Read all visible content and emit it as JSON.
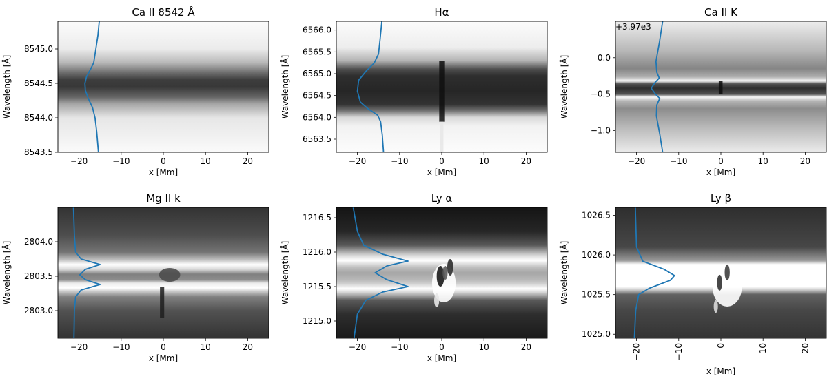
{
  "chart_data": [
    {
      "type": "heatmap",
      "title": "Ca II 8542 Å",
      "xlabel": "x [Mm]",
      "ylabel": "Wavelength [Å]",
      "offset_text": "",
      "xlim": [
        -25,
        25
      ],
      "ylim": [
        8543.5,
        8545.4
      ],
      "xticks": [
        -20,
        -10,
        0,
        10,
        20
      ],
      "xtick_labels": [
        "−20",
        "−10",
        "0",
        "10",
        "20"
      ],
      "yticks": [
        8543.5,
        8544.0,
        8544.5,
        8545.0
      ],
      "ytick_labels": [
        "8543.5",
        "8544.0",
        "8544.5",
        "8545.0"
      ],
      "image_bands": [
        {
          "y": 8543.5,
          "v": 0.98
        },
        {
          "y": 8544.0,
          "v": 0.9
        },
        {
          "y": 8544.2,
          "v": 0.65
        },
        {
          "y": 8544.3,
          "v": 0.4
        },
        {
          "y": 8544.45,
          "v": 0.22
        },
        {
          "y": 8544.55,
          "v": 0.24
        },
        {
          "y": 8544.65,
          "v": 0.42
        },
        {
          "y": 8544.8,
          "v": 0.72
        },
        {
          "y": 8545.0,
          "v": 0.92
        },
        {
          "y": 8545.4,
          "v": 0.99
        }
      ],
      "features": [],
      "profile": {
        "color": "#1f77b4",
        "points": [
          {
            "x": -15.4,
            "y": 8543.5
          },
          {
            "x": -15.8,
            "y": 8543.8
          },
          {
            "x": -16.2,
            "y": 8544.0
          },
          {
            "x": -16.8,
            "y": 8544.15
          },
          {
            "x": -17.8,
            "y": 8544.28
          },
          {
            "x": -18.5,
            "y": 8544.4
          },
          {
            "x": -18.6,
            "y": 8544.5
          },
          {
            "x": -18.2,
            "y": 8544.6
          },
          {
            "x": -17.3,
            "y": 8544.7
          },
          {
            "x": -16.5,
            "y": 8544.8
          },
          {
            "x": -16.0,
            "y": 8545.0
          },
          {
            "x": -15.5,
            "y": 8545.2
          },
          {
            "x": -15.2,
            "y": 8545.4
          }
        ]
      }
    },
    {
      "type": "heatmap",
      "title": "Hα",
      "xlabel": "x [Mm]",
      "ylabel": "Wavelength [Å]",
      "offset_text": "",
      "xlim": [
        -25,
        25
      ],
      "ylim": [
        6563.2,
        6566.2
      ],
      "xticks": [
        -20,
        -10,
        0,
        10,
        20
      ],
      "xtick_labels": [
        "−20",
        "−10",
        "0",
        "10",
        "20"
      ],
      "yticks": [
        6563.5,
        6564.0,
        6564.5,
        6565.0,
        6565.5,
        6566.0
      ],
      "ytick_labels": [
        "6563.5",
        "6564.0",
        "6564.5",
        "6565.0",
        "6565.5",
        "6566.0"
      ],
      "image_bands": [
        {
          "y": 6563.2,
          "v": 0.99
        },
        {
          "y": 6563.8,
          "v": 0.95
        },
        {
          "y": 6564.0,
          "v": 0.85
        },
        {
          "y": 6564.15,
          "v": 0.45
        },
        {
          "y": 6564.3,
          "v": 0.2
        },
        {
          "y": 6564.6,
          "v": 0.15
        },
        {
          "y": 6564.95,
          "v": 0.18
        },
        {
          "y": 6565.1,
          "v": 0.3
        },
        {
          "y": 6565.3,
          "v": 0.7
        },
        {
          "y": 6565.6,
          "v": 0.93
        },
        {
          "y": 6566.2,
          "v": 0.99
        }
      ],
      "features": [
        {
          "x0": -0.6,
          "x1": 0.6,
          "y0": 6563.9,
          "y1": 6565.3,
          "v": 0.06
        },
        {
          "x0": -0.4,
          "x1": 0.4,
          "y0": 6563.2,
          "y1": 6563.9,
          "v": 0.9
        }
      ],
      "profile": {
        "color": "#1f77b4",
        "points": [
          {
            "x": -13.8,
            "y": 6563.2
          },
          {
            "x": -14.1,
            "y": 6563.6
          },
          {
            "x": -14.5,
            "y": 6563.9
          },
          {
            "x": -15.2,
            "y": 6564.05
          },
          {
            "x": -17.5,
            "y": 6564.2
          },
          {
            "x": -19.3,
            "y": 6564.35
          },
          {
            "x": -20.0,
            "y": 6564.6
          },
          {
            "x": -19.7,
            "y": 6564.85
          },
          {
            "x": -18.0,
            "y": 6565.05
          },
          {
            "x": -16.0,
            "y": 6565.25
          },
          {
            "x": -15.0,
            "y": 6565.45
          },
          {
            "x": -14.6,
            "y": 6565.8
          },
          {
            "x": -14.2,
            "y": 6566.2
          }
        ]
      }
    },
    {
      "type": "heatmap",
      "title": "Ca II K",
      "xlabel": "x [Mm]",
      "ylabel": "Wavelength [Å]",
      "offset_text": "+3.97e3",
      "xlim": [
        -25,
        25
      ],
      "ylim": [
        -1.3,
        0.5
      ],
      "xticks": [
        -20,
        -10,
        0,
        10,
        20
      ],
      "xtick_labels": [
        "−20",
        "−10",
        "0",
        "10",
        "20"
      ],
      "yticks": [
        -1.0,
        -0.5,
        0.0
      ],
      "ytick_labels": [
        "−1.0",
        "−0.5",
        "0.0"
      ],
      "image_bands": [
        {
          "y": -1.3,
          "v": 0.92
        },
        {
          "y": -0.95,
          "v": 0.72
        },
        {
          "y": -0.7,
          "v": 0.55
        },
        {
          "y": -0.6,
          "v": 0.7
        },
        {
          "y": -0.54,
          "v": 0.97
        },
        {
          "y": -0.5,
          "v": 0.32
        },
        {
          "y": -0.42,
          "v": 0.18
        },
        {
          "y": -0.36,
          "v": 0.32
        },
        {
          "y": -0.32,
          "v": 0.97
        },
        {
          "y": -0.26,
          "v": 0.68
        },
        {
          "y": -0.15,
          "v": 0.52
        },
        {
          "y": 0.1,
          "v": 0.72
        },
        {
          "y": 0.5,
          "v": 0.93
        }
      ],
      "features": [
        {
          "x0": -0.5,
          "x1": 0.4,
          "y0": -0.5,
          "y1": -0.32,
          "v": 0.05
        }
      ],
      "profile": {
        "color": "#1f77b4",
        "points": [
          {
            "x": -13.8,
            "y": -1.3
          },
          {
            "x": -14.5,
            "y": -1.05
          },
          {
            "x": -15.3,
            "y": -0.8
          },
          {
            "x": -15.2,
            "y": -0.65
          },
          {
            "x": -14.5,
            "y": -0.56
          },
          {
            "x": -15.5,
            "y": -0.5
          },
          {
            "x": -16.5,
            "y": -0.42
          },
          {
            "x": -15.6,
            "y": -0.34
          },
          {
            "x": -14.6,
            "y": -0.28
          },
          {
            "x": -15.2,
            "y": -0.2
          },
          {
            "x": -15.4,
            "y": -0.05
          },
          {
            "x": -14.6,
            "y": 0.2
          },
          {
            "x": -13.8,
            "y": 0.5
          }
        ]
      }
    },
    {
      "type": "heatmap",
      "title": "Mg II k",
      "xlabel": "x [Mm]",
      "ylabel": "Wavelength [Å]",
      "offset_text": "",
      "xlim": [
        -25,
        25
      ],
      "ylim": [
        2802.6,
        2804.5
      ],
      "xticks": [
        -20,
        -10,
        0,
        10,
        20
      ],
      "xtick_labels": [
        "−20",
        "−10",
        "0",
        "10",
        "20"
      ],
      "yticks": [
        2803.0,
        2803.5,
        2804.0
      ],
      "ytick_labels": [
        "2803.0",
        "2803.5",
        "2804.0"
      ],
      "image_bands": [
        {
          "y": 2802.6,
          "v": 0.2
        },
        {
          "y": 2803.0,
          "v": 0.32
        },
        {
          "y": 2803.2,
          "v": 0.5
        },
        {
          "y": 2803.28,
          "v": 0.8
        },
        {
          "y": 2803.33,
          "v": 1.0
        },
        {
          "y": 2803.4,
          "v": 0.92
        },
        {
          "y": 2803.45,
          "v": 0.55
        },
        {
          "y": 2803.53,
          "v": 0.5
        },
        {
          "y": 2803.6,
          "v": 0.85
        },
        {
          "y": 2803.67,
          "v": 1.0
        },
        {
          "y": 2803.74,
          "v": 0.75
        },
        {
          "y": 2803.85,
          "v": 0.45
        },
        {
          "y": 2804.1,
          "v": 0.3
        },
        {
          "y": 2804.5,
          "v": 0.2
        }
      ],
      "features": [
        {
          "cx": 1.5,
          "cy": 2803.52,
          "rx": 2.5,
          "ry": 0.1,
          "v": 0.3
        },
        {
          "x0": -0.8,
          "x1": 0.2,
          "y0": 2802.9,
          "y1": 2803.35,
          "v": 0.12
        }
      ],
      "profile": {
        "color": "#1f77b4",
        "points": [
          {
            "x": -21.2,
            "y": 2802.6
          },
          {
            "x": -21.1,
            "y": 2803.0
          },
          {
            "x": -20.8,
            "y": 2803.2
          },
          {
            "x": -19.5,
            "y": 2803.3
          },
          {
            "x": -15.0,
            "y": 2803.38
          },
          {
            "x": -18.5,
            "y": 2803.45
          },
          {
            "x": -19.8,
            "y": 2803.52
          },
          {
            "x": -18.5,
            "y": 2803.6
          },
          {
            "x": -15.0,
            "y": 2803.67
          },
          {
            "x": -19.5,
            "y": 2803.75
          },
          {
            "x": -20.8,
            "y": 2803.85
          },
          {
            "x": -21.1,
            "y": 2804.1
          },
          {
            "x": -21.3,
            "y": 2804.5
          }
        ]
      }
    },
    {
      "type": "heatmap",
      "title": "Ly α",
      "xlabel": "x [Mm]",
      "ylabel": "Wavelength [Å]",
      "offset_text": "",
      "xlim": [
        -25,
        25
      ],
      "ylim": [
        1214.75,
        1216.65
      ],
      "xticks": [
        -20,
        -10,
        0,
        10,
        20
      ],
      "xtick_labels": [
        "−20",
        "−10",
        "0",
        "10",
        "20"
      ],
      "yticks": [
        1215.0,
        1215.5,
        1216.0,
        1216.5
      ],
      "ytick_labels": [
        "1215.0",
        "1215.5",
        "1216.0",
        "1216.5"
      ],
      "image_bands": [
        {
          "y": 1214.75,
          "v": 0.1
        },
        {
          "y": 1215.1,
          "v": 0.18
        },
        {
          "y": 1215.3,
          "v": 0.35
        },
        {
          "y": 1215.42,
          "v": 0.85
        },
        {
          "y": 1215.47,
          "v": 1.0
        },
        {
          "y": 1215.55,
          "v": 0.8
        },
        {
          "y": 1215.6,
          "v": 0.72
        },
        {
          "y": 1215.7,
          "v": 0.65
        },
        {
          "y": 1215.78,
          "v": 0.75
        },
        {
          "y": 1215.88,
          "v": 1.0
        },
        {
          "y": 1215.95,
          "v": 0.85
        },
        {
          "y": 1216.1,
          "v": 0.35
        },
        {
          "y": 1216.3,
          "v": 0.15
        },
        {
          "y": 1216.65,
          "v": 0.08
        }
      ],
      "features": [
        {
          "cx": 0.5,
          "cy": 1215.55,
          "rx": 2.8,
          "ry": 0.28,
          "v": 1.0
        },
        {
          "cx": -0.3,
          "cy": 1215.65,
          "rx": 0.9,
          "ry": 0.15,
          "v": 0.1
        },
        {
          "cx": 2.0,
          "cy": 1215.78,
          "rx": 0.7,
          "ry": 0.12,
          "v": 0.18
        },
        {
          "cx": 0.8,
          "cy": 1215.7,
          "rx": 0.6,
          "ry": 0.1,
          "v": 0.35
        },
        {
          "cx": -1.2,
          "cy": 1215.3,
          "rx": 0.6,
          "ry": 0.1,
          "v": 0.9
        }
      ],
      "profile": {
        "color": "#1f77b4",
        "points": [
          {
            "x": -20.8,
            "y": 1214.75
          },
          {
            "x": -20.0,
            "y": 1215.1
          },
          {
            "x": -18.0,
            "y": 1215.3
          },
          {
            "x": -14.0,
            "y": 1215.42
          },
          {
            "x": -8.0,
            "y": 1215.5
          },
          {
            "x": -13.0,
            "y": 1215.6
          },
          {
            "x": -15.8,
            "y": 1215.7
          },
          {
            "x": -13.0,
            "y": 1215.8
          },
          {
            "x": -8.0,
            "y": 1215.87
          },
          {
            "x": -14.0,
            "y": 1215.97
          },
          {
            "x": -18.5,
            "y": 1216.1
          },
          {
            "x": -20.0,
            "y": 1216.3
          },
          {
            "x": -21.0,
            "y": 1216.65
          }
        ]
      }
    },
    {
      "type": "heatmap",
      "title": "Ly β",
      "xlabel": "x [Mm]",
      "ylabel": "Wavelength [Å]",
      "offset_text": "",
      "xlim": [
        -25,
        25
      ],
      "ylim": [
        1024.95,
        1026.6
      ],
      "xticks": [
        -20,
        -10,
        0,
        10,
        20
      ],
      "xtick_labels": [
        "−20",
        "−10",
        "0",
        "10",
        "20"
      ],
      "yticks": [
        1025.0,
        1025.5,
        1026.0,
        1026.5
      ],
      "ytick_labels": [
        "1025.0",
        "1025.5",
        "1026.0",
        "1026.5"
      ],
      "image_bands": [
        {
          "y": 1024.95,
          "v": 0.2
        },
        {
          "y": 1025.3,
          "v": 0.28
        },
        {
          "y": 1025.5,
          "v": 0.38
        },
        {
          "y": 1025.56,
          "v": 0.8
        },
        {
          "y": 1025.6,
          "v": 1.0
        },
        {
          "y": 1025.88,
          "v": 1.0
        },
        {
          "y": 1025.93,
          "v": 0.6
        },
        {
          "y": 1026.1,
          "v": 0.28
        },
        {
          "y": 1026.6,
          "v": 0.18
        }
      ],
      "features": [
        {
          "cx": 1.5,
          "cy": 1025.6,
          "rx": 3.5,
          "ry": 0.25,
          "v": 1.0
        },
        {
          "cx": -0.3,
          "cy": 1025.65,
          "rx": 0.6,
          "ry": 0.1,
          "v": 0.2
        },
        {
          "cx": 1.5,
          "cy": 1025.78,
          "rx": 0.6,
          "ry": 0.1,
          "v": 0.25
        },
        {
          "cx": -1.2,
          "cy": 1025.35,
          "rx": 0.5,
          "ry": 0.08,
          "v": 0.85
        }
      ],
      "profile": {
        "color": "#1f77b4",
        "points": [
          {
            "x": -20.5,
            "y": 1024.95
          },
          {
            "x": -20.2,
            "y": 1025.3
          },
          {
            "x": -19.5,
            "y": 1025.5
          },
          {
            "x": -17.0,
            "y": 1025.58
          },
          {
            "x": -12.0,
            "y": 1025.68
          },
          {
            "x": -11.0,
            "y": 1025.74
          },
          {
            "x": -13.5,
            "y": 1025.82
          },
          {
            "x": -18.5,
            "y": 1025.92
          },
          {
            "x": -20.0,
            "y": 1026.1
          },
          {
            "x": -20.3,
            "y": 1026.6
          }
        ]
      }
    }
  ]
}
